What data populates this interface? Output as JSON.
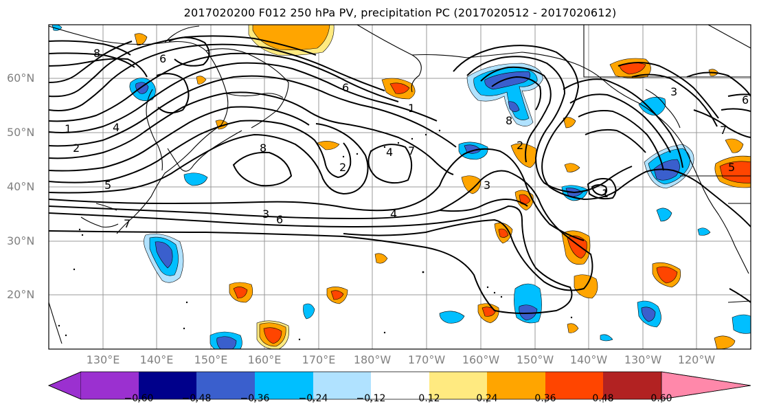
{
  "title": "2017020200 F012 250 hPa PV, precipitation PC (2017020512 - 2017020612)",
  "lat_labels": [
    "60°N",
    "50°N",
    "40°N",
    "30°N",
    "20°N"
  ],
  "lon_labels": [
    "130°E",
    "140°E",
    "150°E",
    "160°E",
    "170°E",
    "180°W",
    "170°W",
    "160°W",
    "150°W",
    "140°W",
    "130°W",
    "120°W"
  ],
  "colorbar": {
    "ticks": [
      "−0.60",
      "−0.48",
      "−0.36",
      "−0.24",
      "−0.12",
      "0.12",
      "0.24",
      "0.36",
      "0.48",
      "0.60"
    ],
    "colors": [
      "#9b30d0",
      "#00008b",
      "#3a5fcd",
      "#00bfff",
      "#b0e2ff",
      "#ffffff",
      "#ffea80",
      "#ffa500",
      "#ff4500",
      "#b22222",
      "#ff88aa"
    ]
  },
  "contour_labels": [
    "1",
    "2",
    "3",
    "4",
    "5",
    "6",
    "7",
    "8",
    "1",
    "2",
    "3",
    "4",
    "5",
    "6",
    "7",
    "8",
    "3",
    "2",
    "1",
    "7",
    "6",
    "8",
    "4",
    "6"
  ],
  "colors": {
    "neg_strong": "#3a5fcd",
    "neg": "#00bfff",
    "neg_weak": "#b0e2ff",
    "pos_weak": "#ffea80",
    "pos": "#ffa500",
    "pos_strong": "#ff4500"
  }
}
